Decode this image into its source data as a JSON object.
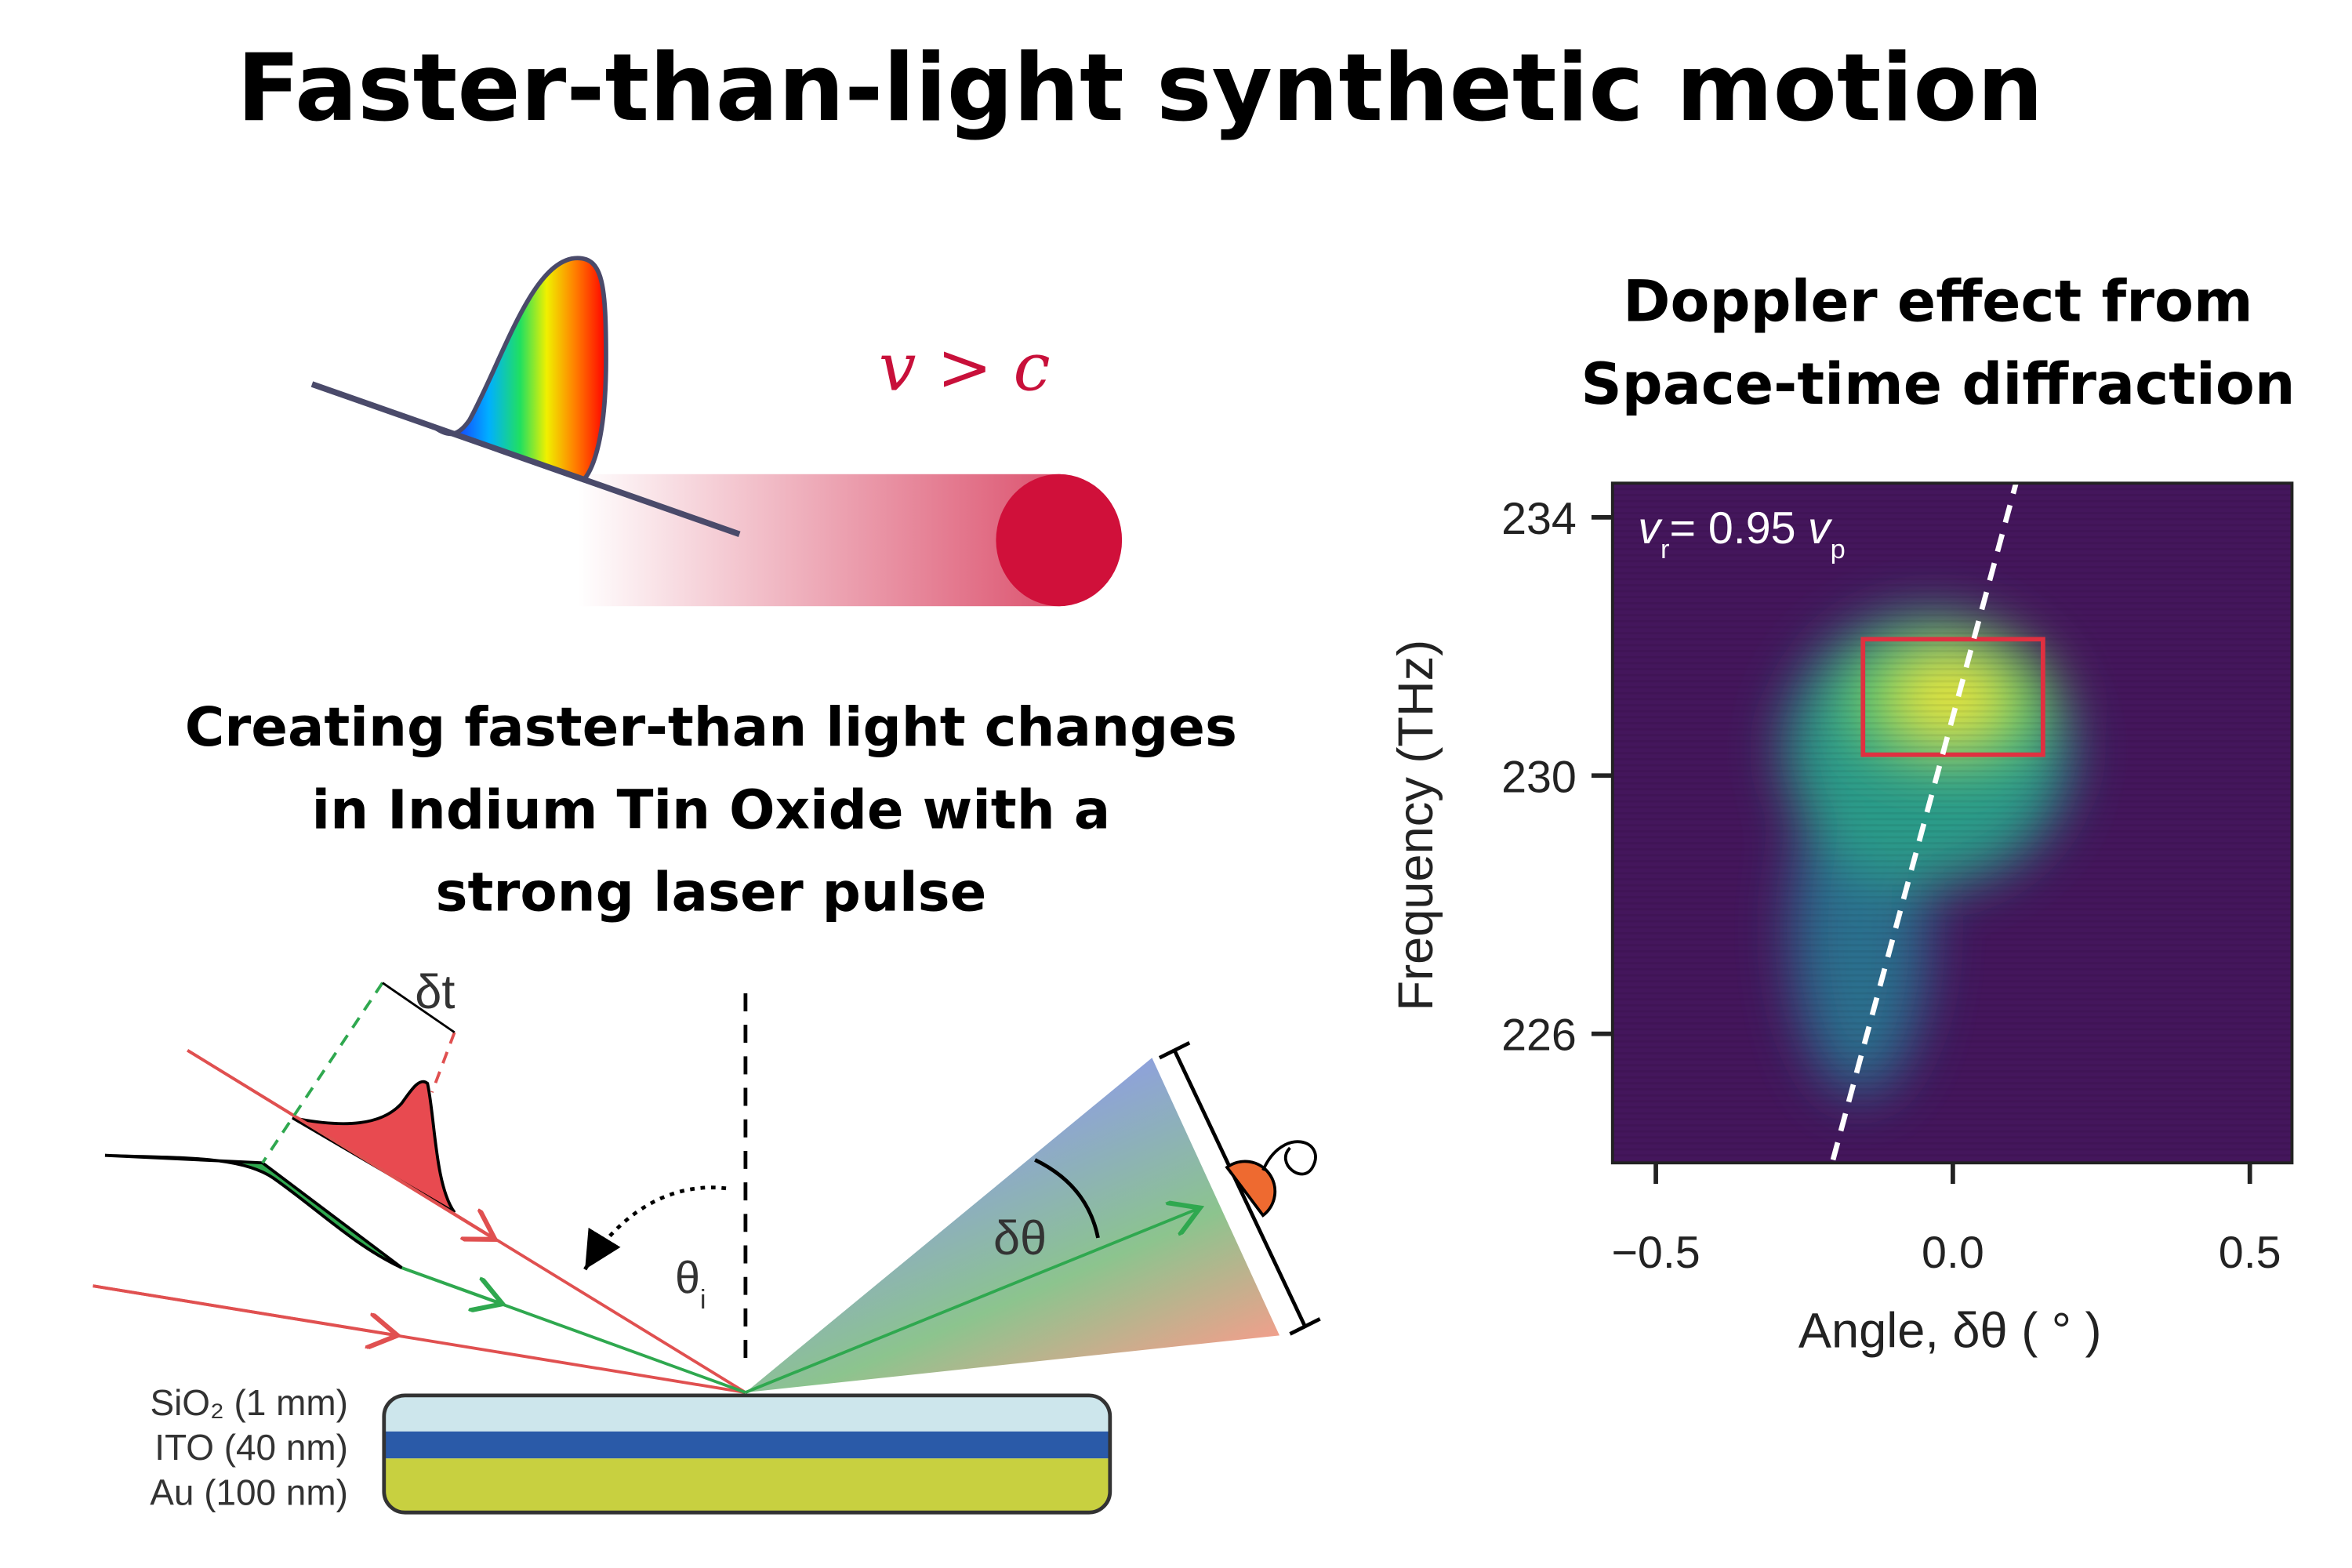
{
  "title": "Faster-than-light synthetic motion",
  "illustration": {
    "label": "v > c"
  },
  "experiment": {
    "caption": [
      "Creating faster-than light changes",
      "in Indium Tin Oxide with a",
      "strong laser pulse"
    ],
    "delay_label": "δt",
    "incidence_label": {
      "symbol": "θ",
      "subscript": "i"
    },
    "angle_label": "δθ",
    "layers": [
      "SiO₂ (1 mm)",
      "ITO (40 nm)",
      "Au (100 nm)"
    ]
  },
  "measurement": {
    "caption": [
      "Doppler effect from",
      "Space-time diffraction"
    ],
    "xlabel": "Angle, δθ ( ° )",
    "ylabel": "Frequency (THz)",
    "xlim": [
      -0.573,
      0.571
    ],
    "ylim": [
      224,
      234.53
    ],
    "xticks": [
      {
        "value": -0.5,
        "label": "−0.5"
      },
      {
        "value": 0,
        "label": "0.0"
      },
      {
        "value": 0.5,
        "label": "0.5"
      }
    ],
    "yticks": [
      226,
      230,
      234
    ],
    "annotation": {
      "v1": "v",
      "sub1": "r",
      "eq": "= 0.95",
      "v2": "v",
      "sub2": "p"
    }
  }
}
